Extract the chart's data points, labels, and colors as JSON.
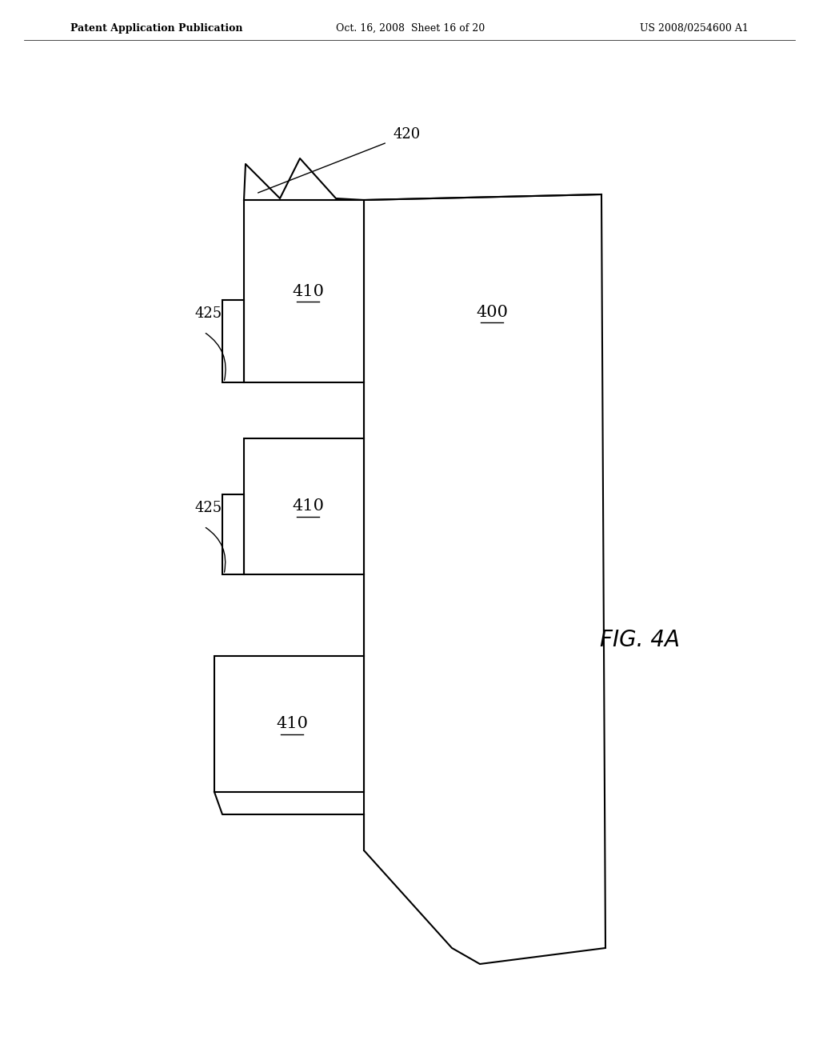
{
  "background_color": "#ffffff",
  "header_left": "Patent Application Publication",
  "header_mid": "Oct. 16, 2008  Sheet 16 of 20",
  "header_right": "US 2008/0254600 A1",
  "fig_label": "FIG. 4A",
  "label_400": "400",
  "label_410": "410",
  "label_420": "420",
  "label_425": "425",
  "line_color": "#000000",
  "line_width": 1.5,
  "text_color": "#000000",
  "header_fontsize": 9,
  "fig_label_fontsize": 20,
  "ref_label_fontsize": 15,
  "arrow_label_fontsize": 13
}
